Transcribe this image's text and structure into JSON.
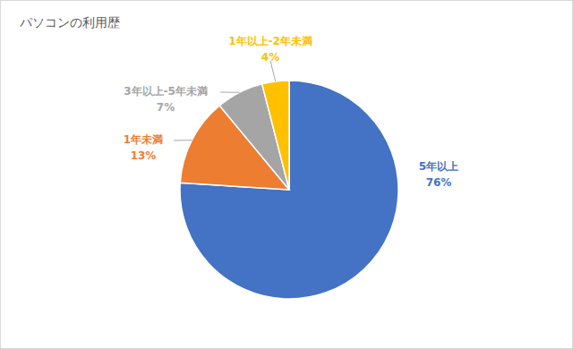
{
  "chart_data": {
    "type": "pie",
    "title": "パソコンの利用歴",
    "categories": [
      "5年以上",
      "1年未満",
      "3年以上-5年未満",
      "1年以上-2年未満"
    ],
    "values": [
      76,
      13,
      7,
      4
    ],
    "value_labels": [
      "76%",
      "13%",
      "7%",
      "4%"
    ],
    "colors": [
      "#4472c4",
      "#ed7d31",
      "#a5a5a5",
      "#ffc000"
    ],
    "data_labels": true
  }
}
